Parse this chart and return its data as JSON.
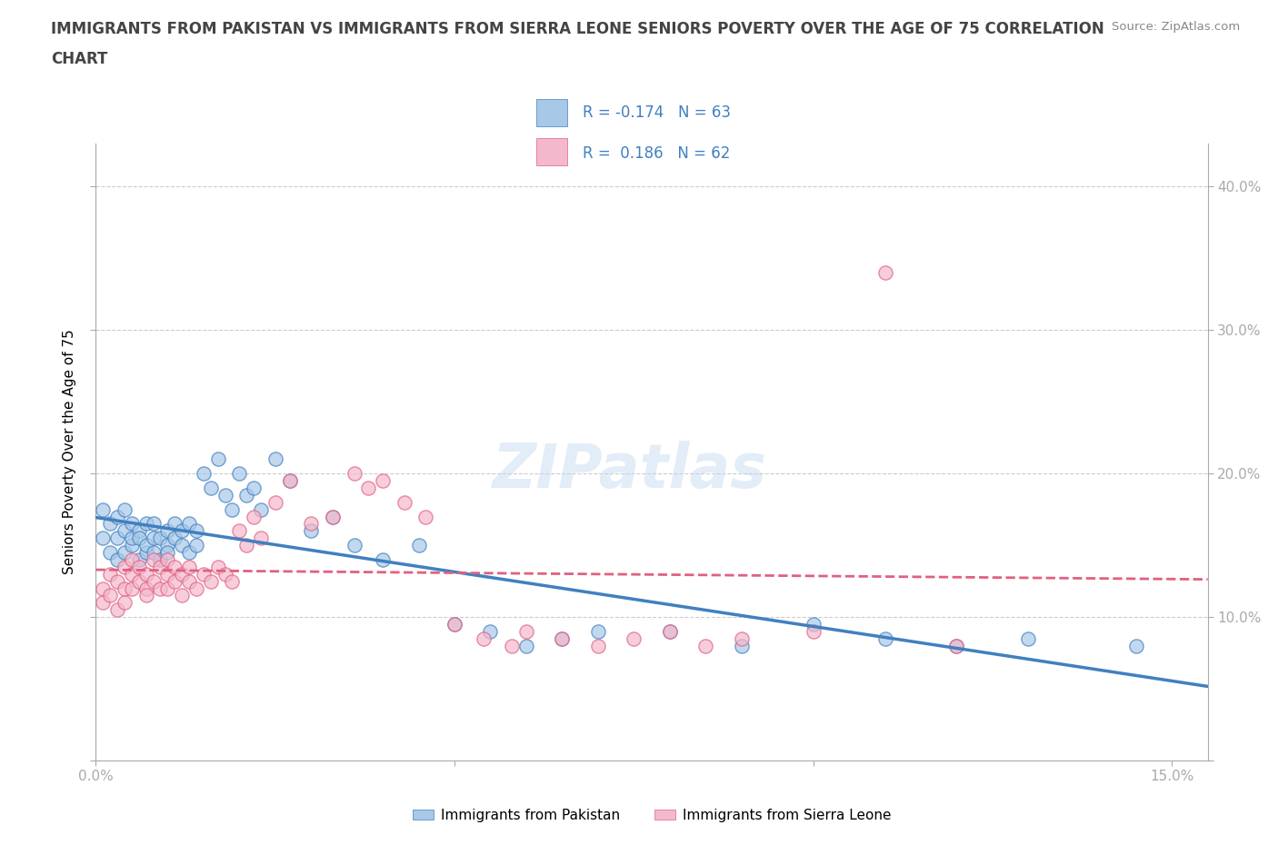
{
  "title_line1": "IMMIGRANTS FROM PAKISTAN VS IMMIGRANTS FROM SIERRA LEONE SENIORS POVERTY OVER THE AGE OF 75 CORRELATION",
  "title_line2": "CHART",
  "ylabel": "Seniors Poverty Over the Age of 75",
  "source": "Source: ZipAtlas.com",
  "xlim": [
    0.0,
    0.155
  ],
  "ylim": [
    0.0,
    0.43
  ],
  "ytick_positions": [
    0.0,
    0.1,
    0.2,
    0.3,
    0.4
  ],
  "ytick_labels_right": [
    "",
    "10.0%",
    "20.0%",
    "30.0%",
    "40.0%"
  ],
  "ytick_labels_left": [
    "",
    "",
    "",
    "",
    ""
  ],
  "xtick_positions": [
    0.0,
    0.05,
    0.1,
    0.15
  ],
  "xtick_labels": [
    "0.0%",
    "",
    "",
    "15.0%"
  ],
  "pakistan_color": "#a8c8e8",
  "sierra_leone_color": "#f4b8cc",
  "pakistan_line_color": "#4080c0",
  "sierra_leone_line_color": "#e06080",
  "r_pakistan": -0.174,
  "n_pakistan": 63,
  "r_sierra_leone": 0.186,
  "n_sierra_leone": 62,
  "watermark": "ZIPatlas",
  "pakistan_x": [
    0.001,
    0.001,
    0.002,
    0.002,
    0.003,
    0.003,
    0.003,
    0.004,
    0.004,
    0.004,
    0.005,
    0.005,
    0.005,
    0.006,
    0.006,
    0.006,
    0.007,
    0.007,
    0.007,
    0.008,
    0.008,
    0.008,
    0.009,
    0.009,
    0.01,
    0.01,
    0.01,
    0.011,
    0.011,
    0.012,
    0.012,
    0.013,
    0.013,
    0.014,
    0.014,
    0.015,
    0.016,
    0.017,
    0.018,
    0.019,
    0.02,
    0.021,
    0.022,
    0.023,
    0.025,
    0.027,
    0.03,
    0.033,
    0.036,
    0.04,
    0.045,
    0.05,
    0.055,
    0.06,
    0.065,
    0.07,
    0.08,
    0.09,
    0.1,
    0.11,
    0.12,
    0.13,
    0.145
  ],
  "pakistan_y": [
    0.155,
    0.175,
    0.145,
    0.165,
    0.17,
    0.155,
    0.14,
    0.16,
    0.145,
    0.175,
    0.15,
    0.165,
    0.155,
    0.14,
    0.16,
    0.155,
    0.145,
    0.165,
    0.15,
    0.155,
    0.145,
    0.165,
    0.14,
    0.155,
    0.15,
    0.16,
    0.145,
    0.155,
    0.165,
    0.15,
    0.16,
    0.145,
    0.165,
    0.15,
    0.16,
    0.2,
    0.19,
    0.21,
    0.185,
    0.175,
    0.2,
    0.185,
    0.19,
    0.175,
    0.21,
    0.195,
    0.16,
    0.17,
    0.15,
    0.14,
    0.15,
    0.095,
    0.09,
    0.08,
    0.085,
    0.09,
    0.09,
    0.08,
    0.095,
    0.085,
    0.08,
    0.085,
    0.08
  ],
  "sierra_leone_x": [
    0.001,
    0.001,
    0.002,
    0.002,
    0.003,
    0.003,
    0.004,
    0.004,
    0.004,
    0.005,
    0.005,
    0.005,
    0.006,
    0.006,
    0.007,
    0.007,
    0.007,
    0.008,
    0.008,
    0.009,
    0.009,
    0.01,
    0.01,
    0.01,
    0.011,
    0.011,
    0.012,
    0.012,
    0.013,
    0.013,
    0.014,
    0.015,
    0.016,
    0.017,
    0.018,
    0.019,
    0.02,
    0.021,
    0.022,
    0.023,
    0.025,
    0.027,
    0.03,
    0.033,
    0.036,
    0.038,
    0.04,
    0.043,
    0.046,
    0.05,
    0.054,
    0.058,
    0.06,
    0.065,
    0.07,
    0.075,
    0.08,
    0.085,
    0.09,
    0.1,
    0.11,
    0.12
  ],
  "sierra_leone_y": [
    0.12,
    0.11,
    0.13,
    0.115,
    0.105,
    0.125,
    0.135,
    0.12,
    0.11,
    0.13,
    0.12,
    0.14,
    0.125,
    0.135,
    0.12,
    0.13,
    0.115,
    0.14,
    0.125,
    0.135,
    0.12,
    0.13,
    0.14,
    0.12,
    0.135,
    0.125,
    0.115,
    0.13,
    0.125,
    0.135,
    0.12,
    0.13,
    0.125,
    0.135,
    0.13,
    0.125,
    0.16,
    0.15,
    0.17,
    0.155,
    0.18,
    0.195,
    0.165,
    0.17,
    0.2,
    0.19,
    0.195,
    0.18,
    0.17,
    0.095,
    0.085,
    0.08,
    0.09,
    0.085,
    0.08,
    0.085,
    0.09,
    0.08,
    0.085,
    0.09,
    0.34,
    0.08
  ]
}
